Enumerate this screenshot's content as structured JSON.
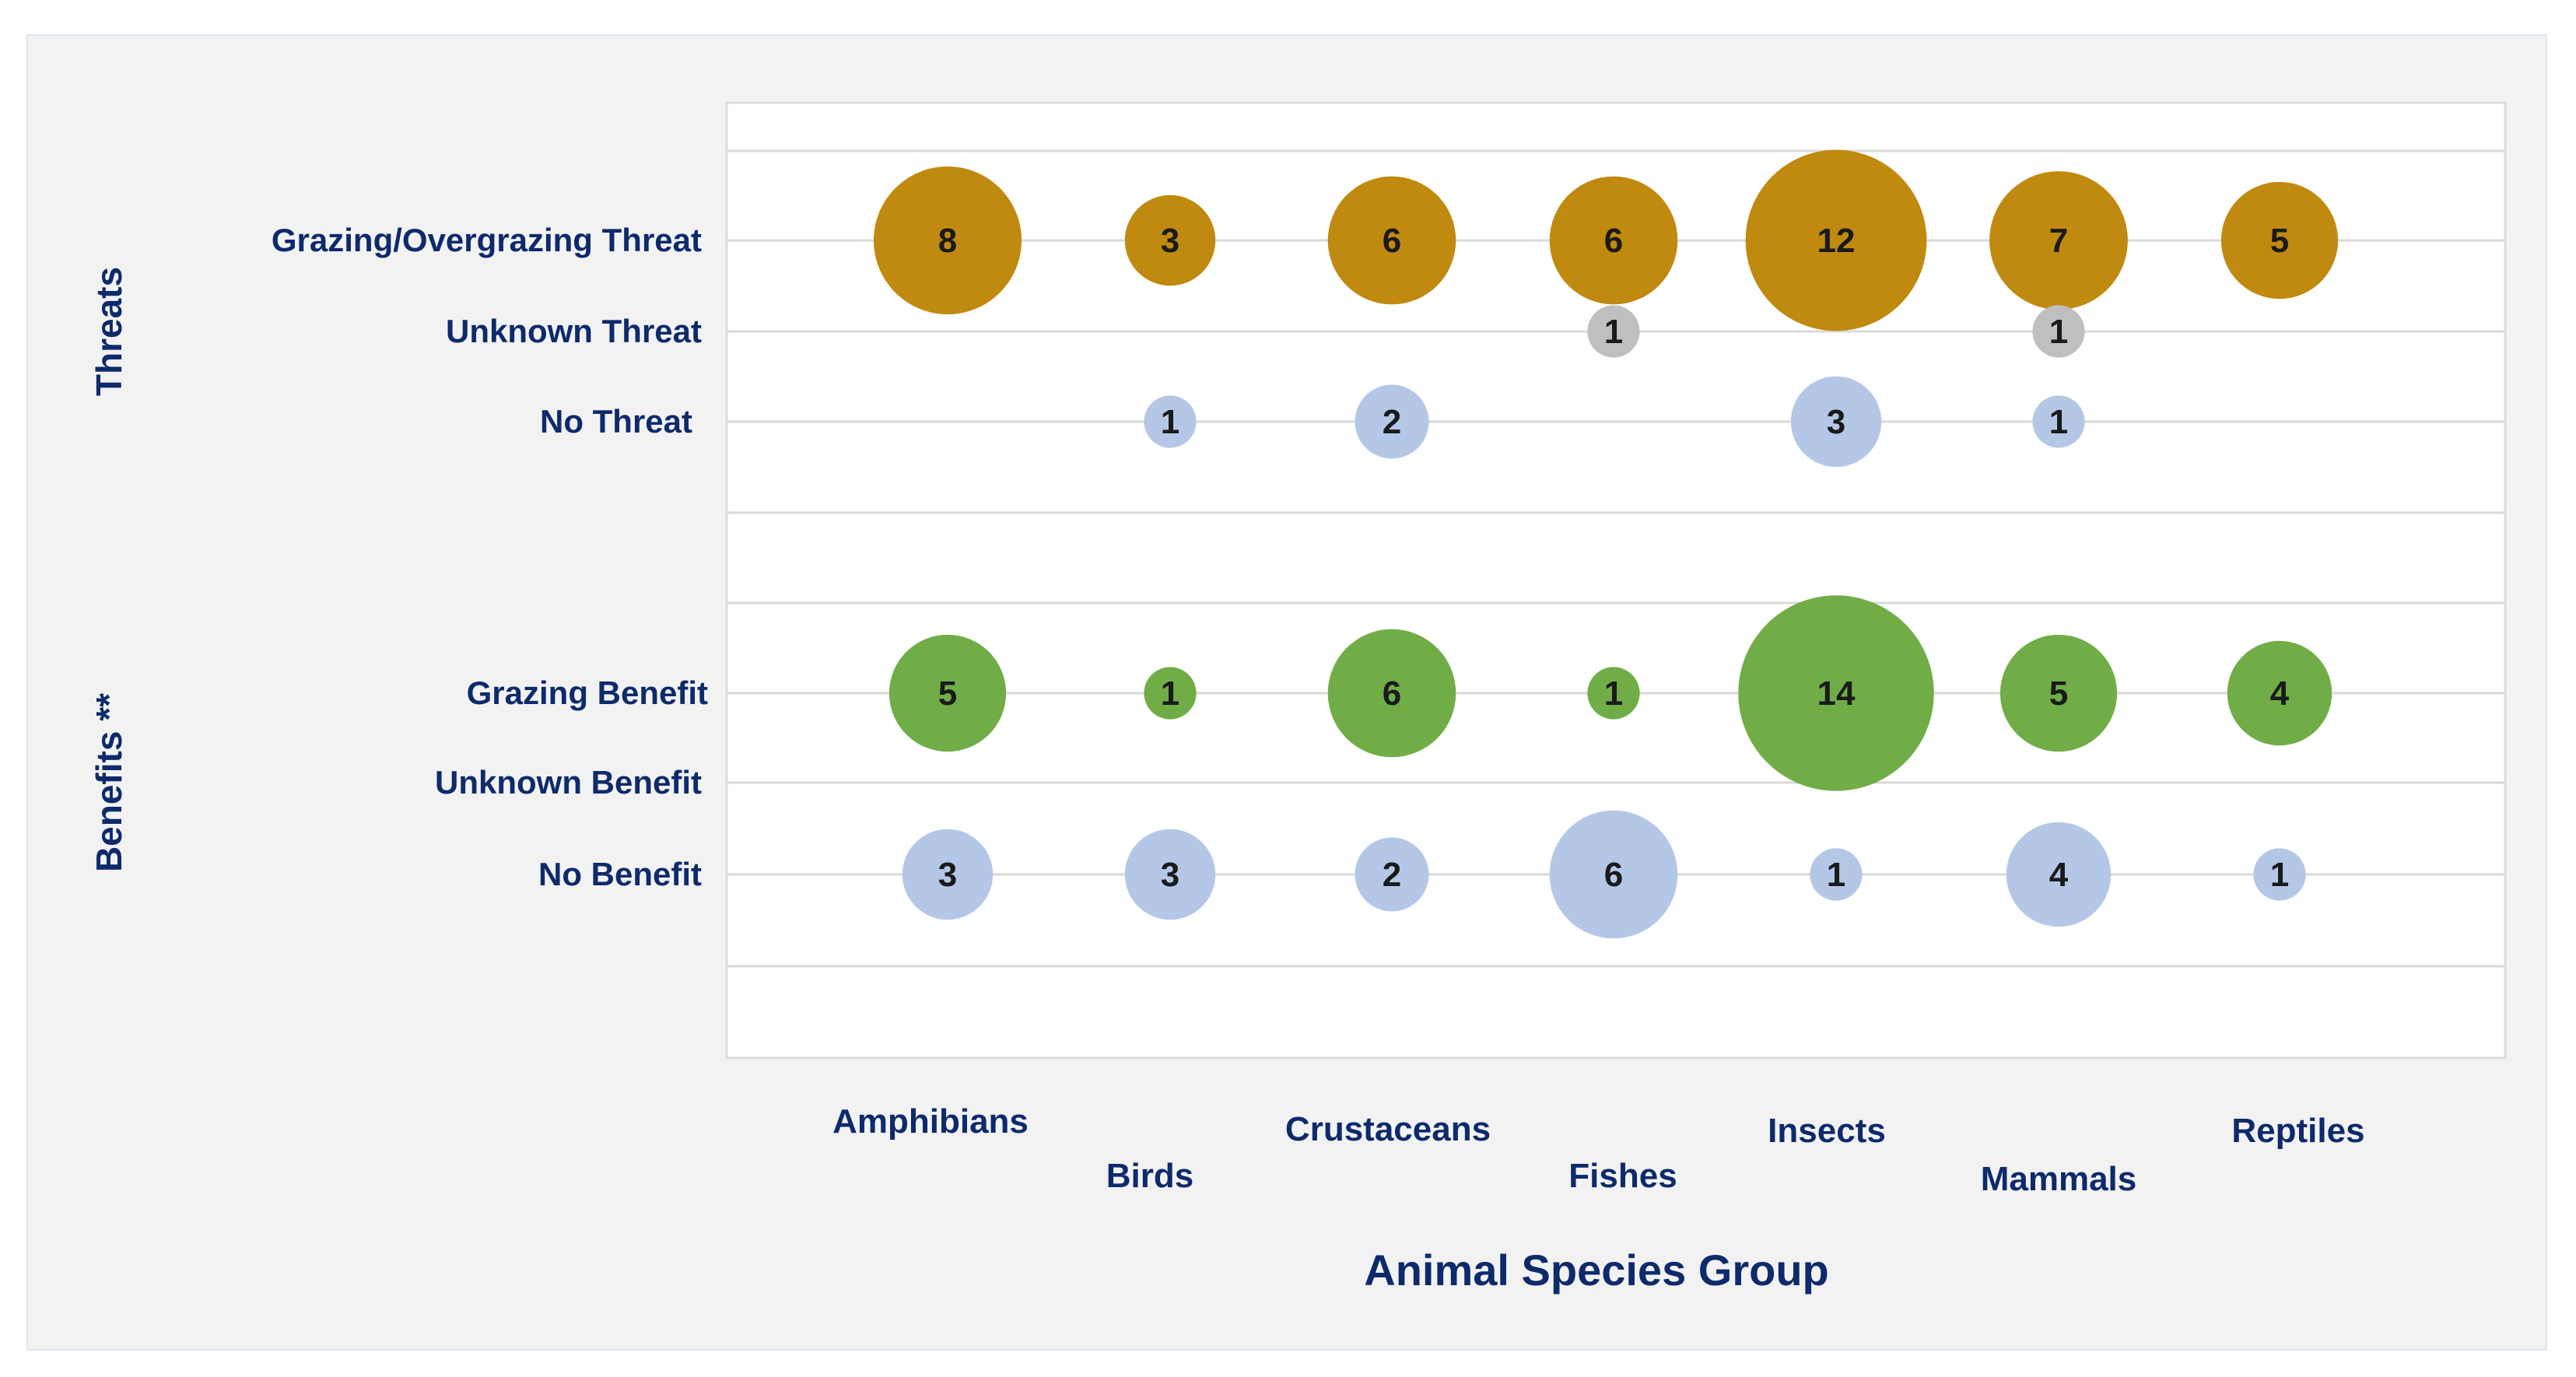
{
  "chart_data": {
    "type": "bubble",
    "xlabel": "Animal Species Group",
    "categories": [
      "Amphibians",
      "Birds",
      "Crustaceans",
      "Fishes",
      "Insects",
      "Mammals",
      "Reptiles"
    ],
    "groups": [
      {
        "name": "Threats",
        "rows": [
          "Grazing/Overgrazing Threat",
          "Unknown Threat",
          "No Threat"
        ]
      },
      {
        "name": "Benefits **",
        "rows": [
          "Grazing Benefit",
          "Unknown Benefit",
          "No Benefit"
        ]
      }
    ],
    "series": [
      {
        "name": "Grazing/Overgrazing Threat",
        "color": "#c08a10",
        "values": [
          8,
          3,
          6,
          6,
          12,
          7,
          5
        ]
      },
      {
        "name": "Unknown Threat",
        "color": "#bfbfbf",
        "values": [
          null,
          null,
          null,
          1,
          null,
          1,
          null
        ]
      },
      {
        "name": "No Threat",
        "color": "#b4c7e7",
        "values": [
          null,
          1,
          2,
          null,
          3,
          1,
          null
        ]
      },
      {
        "name": "Grazing Benefit",
        "color": "#70ad47",
        "values": [
          5,
          1,
          6,
          1,
          14,
          5,
          4
        ]
      },
      {
        "name": "Unknown Benefit",
        "color": "#bfbfbf",
        "values": [
          null,
          null,
          null,
          null,
          null,
          null,
          null
        ]
      },
      {
        "name": "No Benefit",
        "color": "#b4c7e7",
        "values": [
          3,
          3,
          2,
          6,
          1,
          4,
          1
        ]
      }
    ],
    "grid": true
  },
  "colors": {
    "label_text": "#0d2a6b",
    "gridline": "#d9d9d9",
    "plot_background": "#ffffff",
    "panel_background": "#f2f2f2"
  }
}
